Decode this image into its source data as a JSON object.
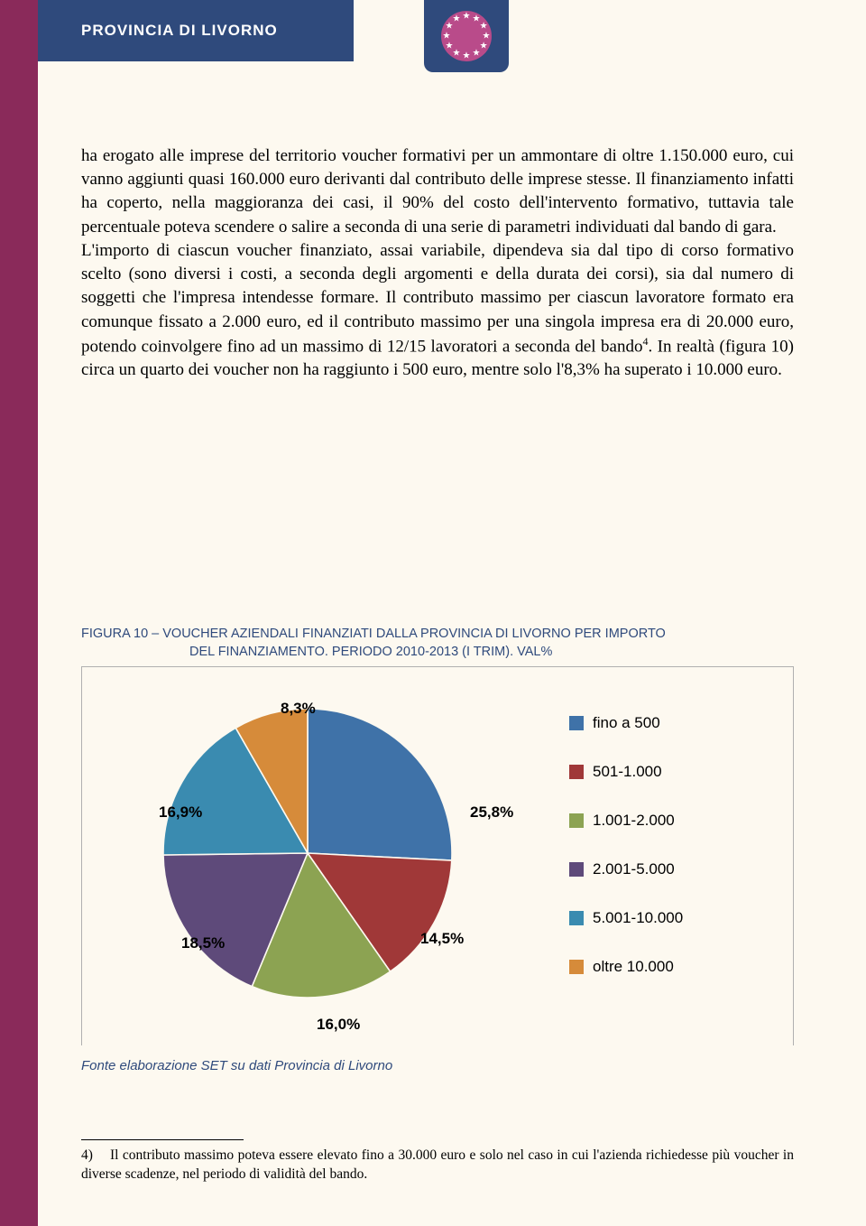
{
  "header": {
    "title": "PROVINCIA DI LIVORNO"
  },
  "eu": {
    "star_count": 12
  },
  "body": {
    "text": "ha erogato alle imprese del territorio voucher formativi per un ammontare di oltre 1.150.000 euro, cui vanno aggiunti quasi 160.000 euro derivanti dal contributo delle imprese stesse. Il finanziamento infatti ha coperto, nella maggioranza dei casi, il 90% del costo dell'intervento formativo, tuttavia tale percentuale poteva scendere o salire a seconda di una serie di parametri individuati dal bando di gara.\nL'importo di ciascun voucher finanziato, assai variabile, dipendeva sia dal tipo di corso formativo scelto (sono diversi i costi, a seconda degli argomenti e della durata dei corsi), sia dal numero di soggetti che l'impresa intendesse formare. Il contributo massimo per ciascun lavoratore formato era comunque fissato a 2.000 euro, ed il contributo massimo per una singola impresa era di 20.000 euro, potendo coinvolgere fino ad un massimo di 12/15 lavoratori a seconda del bando",
    "sup": "4",
    "text_after": ". In realtà (figura 10) circa un quarto dei voucher non ha raggiunto i 500 euro, mentre solo l'8,3% ha superato i 10.000 euro."
  },
  "figure": {
    "title_line1": "FIGURA 10 – VOUCHER AZIENDALI FINANZIATI DALLA PROVINCIA DI LIVORNO PER IMPORTO",
    "title_line2": "DEL FINANZIAMENTO. PERIODO 2010-2013 (I TRIM). VAL%",
    "caption": "Fonte elaborazione SET su dati Provincia di Livorno"
  },
  "chart": {
    "type": "pie",
    "background_color": "#fdf9f0",
    "border_color": "#b0b0b0",
    "slices": [
      {
        "label": "fino a 500",
        "value": 25.8,
        "display": "25,8%",
        "color": "#3f72a8"
      },
      {
        "label": "501-1.000",
        "value": 14.5,
        "display": "14,5%",
        "color": "#a03838"
      },
      {
        "label": "1.001-2.000",
        "value": 16.0,
        "display": "16,0%",
        "color": "#8ca352"
      },
      {
        "label": "2.001-5.000",
        "value": 18.5,
        "display": "18,5%",
        "color": "#5e4a7a"
      },
      {
        "label": "5.001-10.000",
        "value": 16.9,
        "display": "16,9%",
        "color": "#3a8bb0"
      },
      {
        "label": "oltre 10.000",
        "value": 8.3,
        "display": "8,3%",
        "color": "#d68b3a"
      }
    ],
    "label_fontsize": 17,
    "label_fontweight": "bold",
    "legend_fontsize": 17,
    "start_angle_deg": -90
  },
  "footnote": {
    "num": "4)",
    "text": "Il contributo massimo poteva essere elevato fino a 30.000 euro e solo nel caso in cui l'azienda richiedesse più voucher in diverse scadenze, nel periodo di validità del bando."
  }
}
